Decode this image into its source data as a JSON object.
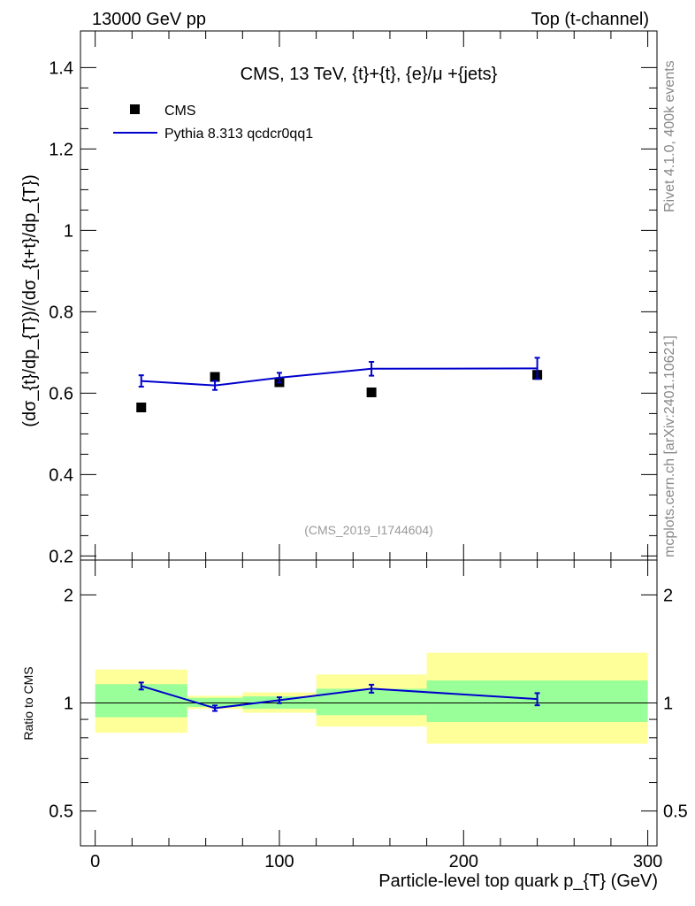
{
  "header": {
    "left": "13000 GeV pp",
    "right": "Top (t-channel)"
  },
  "side": {
    "rivet": "Rivet 4.1.0,  400k events",
    "mcplots": "mcplots.cern.ch [arXiv:2401.10621]"
  },
  "chart_data": [
    {
      "panel": "main",
      "type": "scatter",
      "title": "CMS, 13 TeV, {t}+{t}, {e}/μ +{jets}",
      "analysis_id": "(CMS_2019_I1744604)",
      "ylabel": "(dσ_{t}/dp_{T})/(dσ_{t+t}/dp_{T})",
      "xlim": [
        -8,
        305
      ],
      "ylim": [
        0.19,
        1.49
      ],
      "yticks": [
        0.2,
        0.4,
        0.6,
        0.8,
        1,
        1.2,
        1.4
      ],
      "ytick_labels": [
        "0.2",
        "0.4",
        "0.6",
        "0.8",
        "1",
        "1.2",
        "1.4"
      ],
      "legend": {
        "position": "top-left",
        "entries": [
          "CMS",
          "Pythia 8.313 qcdcr0qq1"
        ]
      },
      "series": [
        {
          "name": "CMS",
          "style": "markers",
          "color": "#000000",
          "x": [
            25,
            65,
            100,
            150,
            240
          ],
          "y": [
            0.565,
            0.64,
            0.627,
            0.602,
            0.645
          ]
        },
        {
          "name": "Pythia 8.313 qcdcr0qq1",
          "style": "line",
          "color": "#0000cc",
          "x": [
            25,
            65,
            100,
            150,
            240
          ],
          "y": [
            0.63,
            0.619,
            0.638,
            0.66,
            0.661
          ],
          "yerr": [
            0.014,
            0.011,
            0.012,
            0.017,
            0.026
          ]
        }
      ]
    },
    {
      "panel": "ratio",
      "type": "line",
      "ylabel": "Ratio to CMS",
      "xlabel": "Particle-level top quark p_{T} (GeV)",
      "xlim": [
        -8,
        305
      ],
      "ylim": [
        0.4,
        2.5
      ],
      "yscale": "log",
      "yticks": [
        0.5,
        1,
        2
      ],
      "ytick_labels": [
        "0.5",
        "1",
        "2"
      ],
      "xticks": [
        0,
        100,
        200,
        300
      ],
      "xtick_labels": [
        "0",
        "100",
        "200",
        "300"
      ],
      "bands": [
        {
          "x0": 0,
          "x1": 50,
          "yellow": [
            0.826,
            1.239
          ],
          "green": [
            0.912,
            1.128
          ]
        },
        {
          "x0": 50,
          "x1": 80,
          "yellow": [
            0.962,
            1.047
          ],
          "green": [
            0.975,
            1.033
          ]
        },
        {
          "x0": 80,
          "x1": 120,
          "yellow": [
            0.939,
            1.07
          ],
          "green": [
            0.963,
            1.043
          ]
        },
        {
          "x0": 120,
          "x1": 180,
          "yellow": [
            0.86,
            1.2
          ],
          "green": [
            0.925,
            1.095
          ]
        },
        {
          "x0": 180,
          "x1": 300,
          "yellow": [
            0.77,
            1.38
          ],
          "green": [
            0.885,
            1.155
          ]
        }
      ],
      "series": [
        {
          "name": "Pythia 8.313 qcdcr0qq1",
          "color": "#0000cc",
          "x": [
            25,
            65,
            100,
            150,
            240
          ],
          "y": [
            1.115,
            0.967,
            1.018,
            1.096,
            1.025
          ],
          "yerr": [
            0.025,
            0.017,
            0.019,
            0.028,
            0.04
          ]
        }
      ]
    }
  ]
}
